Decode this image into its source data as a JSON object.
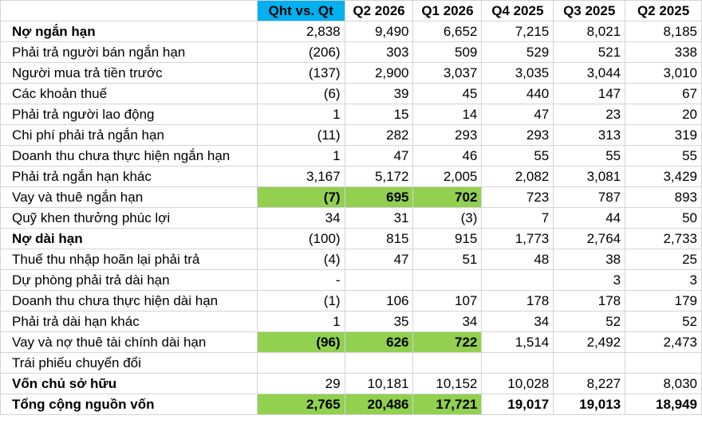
{
  "header": {
    "blank": "",
    "columns": [
      "Qht vs. Qt",
      "Q2 2026",
      "Q1 2026",
      "Q4 2025",
      "Q3 2025",
      "Q2 2025"
    ]
  },
  "rows": [
    {
      "label": "Nợ ngắn hạn",
      "values": [
        "2,838",
        "9,490",
        "6,652",
        "7,215",
        "8,021",
        "8,185"
      ]
    },
    {
      "label": "Phải trả người bán ngắn hạn",
      "values": [
        "(206)",
        "303",
        "509",
        "529",
        "521",
        "338"
      ]
    },
    {
      "label": "Người mua trả tiền trước",
      "values": [
        "(137)",
        "2,900",
        "3,037",
        "3,035",
        "3,044",
        "3,010"
      ]
    },
    {
      "label": "Các khoản thuế",
      "values": [
        "(6)",
        "39",
        "45",
        "440",
        "147",
        "67"
      ]
    },
    {
      "label": "Phải trả người lao động",
      "values": [
        "1",
        "15",
        "14",
        "47",
        "23",
        "20"
      ]
    },
    {
      "label": "Chi phí phải trả ngắn hạn",
      "values": [
        "(11)",
        "282",
        "293",
        "293",
        "313",
        "319"
      ]
    },
    {
      "label": "Doanh thu chưa thực hiện ngắn hạn",
      "values": [
        "1",
        "47",
        "46",
        "55",
        "55",
        "55"
      ]
    },
    {
      "label": "Phải trả ngắn hạn khác",
      "values": [
        "3,167",
        "5,172",
        "2,005",
        "2,082",
        "3,081",
        "3,429"
      ]
    },
    {
      "label": "Vay và thuê ngắn hạn",
      "values": [
        "(7)",
        "695",
        "702",
        "723",
        "787",
        "893"
      ]
    },
    {
      "label": "Quỹ khen thưởng phúc lợi",
      "values": [
        "34",
        "31",
        "(3)",
        "7",
        "44",
        "50"
      ]
    },
    {
      "label": "Nợ dài hạn",
      "values": [
        "(100)",
        "815",
        "915",
        "1,773",
        "2,764",
        "2,733"
      ]
    },
    {
      "label": "Thuế thu nhập hoãn lại phải trả",
      "values": [
        "(4)",
        "47",
        "51",
        "48",
        "38",
        "25"
      ]
    },
    {
      "label": "Dự phòng phải trả dài hạn",
      "values": [
        "-",
        "",
        "",
        "",
        "3",
        "3"
      ]
    },
    {
      "label": "Doanh thu chưa thực hiện dài hạn",
      "values": [
        "(1)",
        "106",
        "107",
        "178",
        "178",
        "179"
      ]
    },
    {
      "label": "Phải trả dài hạn khác",
      "values": [
        "1",
        "35",
        "34",
        "34",
        "52",
        "52"
      ]
    },
    {
      "label": "Vay và nợ thuê tài chính dài hạn",
      "values": [
        "(96)",
        "626",
        "722",
        "1,514",
        "2,492",
        "2,473"
      ]
    },
    {
      "label": "Trái phiếu chuyển đổi",
      "values": [
        "",
        "",
        "",
        "",
        "",
        ""
      ]
    },
    {
      "label": "Vốn chủ sở hữu",
      "values": [
        "29",
        "10,181",
        "10,152",
        "10,028",
        "8,227",
        "8,030"
      ]
    },
    {
      "label": "Tổng cộng nguồn vốn",
      "values": [
        "2,765",
        "20,486",
        "17,721",
        "19,017",
        "19,013",
        "18,949"
      ]
    }
  ],
  "colors": {
    "header_highlight": "#00b0f0",
    "row_highlight": "#92d050"
  }
}
